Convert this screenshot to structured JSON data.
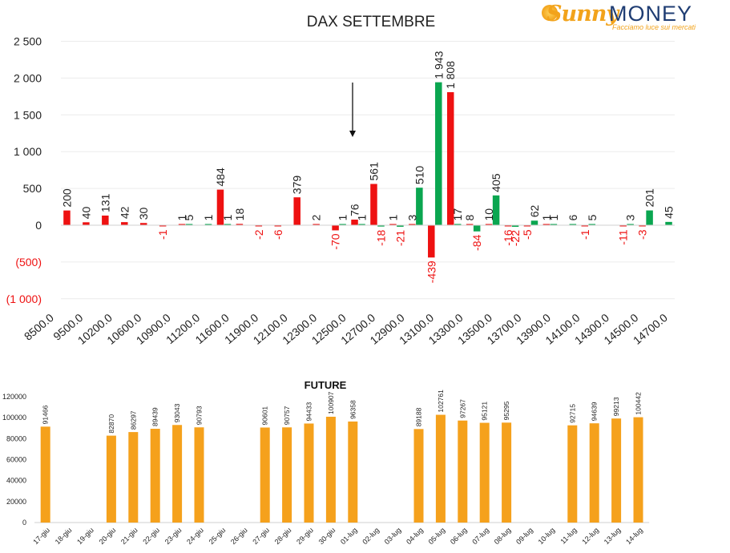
{
  "logo": {
    "brand_left": "Sunny",
    "brand_right": "MONEY",
    "tagline": "Facciamo luce sui mercati"
  },
  "colors": {
    "positive": "#0aa650",
    "negative": "#ee1111",
    "future": "#f5a11c",
    "axis_negative_label": "#ee1111"
  },
  "chart_data": [
    {
      "type": "bar",
      "title": "DAX SETTEMBRE",
      "xlabel": "",
      "ylabel": "",
      "ylim": [
        -1000,
        2500
      ],
      "yticks": [
        "2 500",
        "2 000",
        "1 500",
        "1 000",
        "500",
        "0",
        "(500)",
        "(1 000)"
      ],
      "xtick_labels": [
        "8500.0",
        "9500.0",
        "10200.0",
        "10600.0",
        "10900.0",
        "11200.0",
        "11600.0",
        "11900.0",
        "12100.0",
        "12300.0",
        "12500.0",
        "12700.0",
        "12900.0",
        "13100.0",
        "13300.0",
        "13500.0",
        "13700.0",
        "13900.0",
        "14100.0",
        "14300.0",
        "14500.0",
        "14700.0"
      ],
      "annotation": "arrow pointing down near 12500",
      "series": [
        {
          "values": [
            null,
            null,
            null,
            null,
            null,
            null,
            5,
            1,
            1,
            null,
            null,
            null,
            null,
            null,
            1,
            1,
            -18,
            -21,
            510,
            1943,
            17,
            -84,
            405,
            -22,
            62,
            1,
            6,
            5,
            null,
            3,
            201,
            45
          ]
        },
        {
          "values": [
            200,
            40,
            131,
            42,
            30,
            -1,
            1,
            null,
            484,
            18,
            -2,
            -6,
            379,
            2,
            -70,
            76,
            561,
            1,
            3,
            -439,
            1808,
            8,
            10,
            -16,
            -5,
            1,
            null,
            -1,
            null,
            -11,
            -3,
            null
          ]
        }
      ]
    },
    {
      "type": "bar",
      "title": "FUTURE",
      "ylim": [
        0,
        120000
      ],
      "yticks": [
        "120000",
        "100000",
        "80000",
        "60000",
        "40000",
        "20000",
        "0"
      ],
      "categories": [
        "17-giu",
        "18-giu",
        "19-giu",
        "20-giu",
        "21-giu",
        "22-giu",
        "23-giu",
        "24-giu",
        "25-giu",
        "26-giu",
        "27-giu",
        "28-giu",
        "29-giu",
        "30-giu",
        "01-lug",
        "02-lug",
        "03-lug",
        "04-lug",
        "05-lug",
        "06-lug",
        "07-lug",
        "08-lug",
        "09-lug",
        "10-lug",
        "11-lug",
        "12-lug",
        "13-lug",
        "14-lug"
      ],
      "values": [
        91466,
        null,
        null,
        82870,
        86297,
        89439,
        93043,
        90793,
        null,
        null,
        90601,
        90757,
        94433,
        100907,
        96358,
        null,
        null,
        89188,
        102761,
        97267,
        95121,
        95295,
        null,
        null,
        92715,
        94639,
        99213,
        100442
      ]
    }
  ]
}
